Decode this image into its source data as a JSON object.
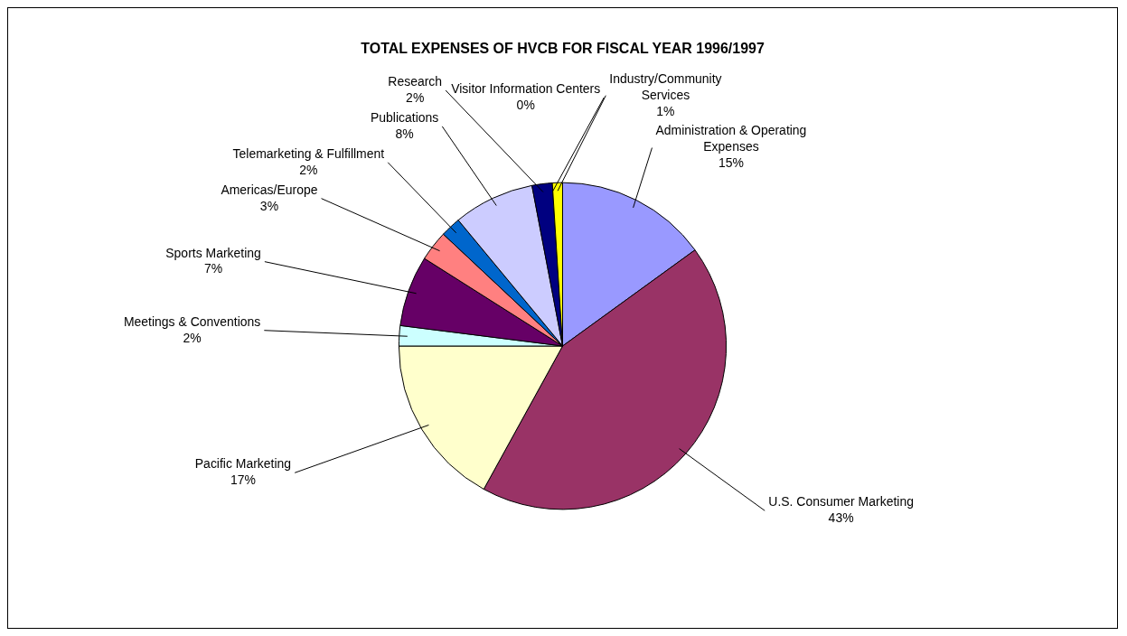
{
  "chart_data": {
    "type": "pie",
    "title": "TOTAL EXPENSES OF HVCB FOR FISCAL YEAR 1996/1997",
    "categories": [
      "Administration & Operating Expenses",
      "U.S. Consumer Marketing",
      "Pacific Marketing",
      "Meetings & Conventions",
      "Sports Marketing",
      "Americas/Europe",
      "Telemarketing & Fulfillment",
      "Publications",
      "Research",
      "Visitor Information Centers",
      "Industry/Community Services"
    ],
    "values": [
      15,
      43,
      17,
      2,
      7,
      3,
      2,
      8,
      2,
      0,
      1
    ],
    "colors": [
      "#9999ff",
      "#993366",
      "#ffffcc",
      "#ccffff",
      "#660066",
      "#ff8080",
      "#0066cc",
      "#ccccff",
      "#000080",
      "#00ffff",
      "#ffff00"
    ],
    "value_labels": [
      "15%",
      "43%",
      "17%",
      "2%",
      "7%",
      "3%",
      "2%",
      "8%",
      "2%",
      "0%",
      "1%"
    ],
    "legend": false
  }
}
